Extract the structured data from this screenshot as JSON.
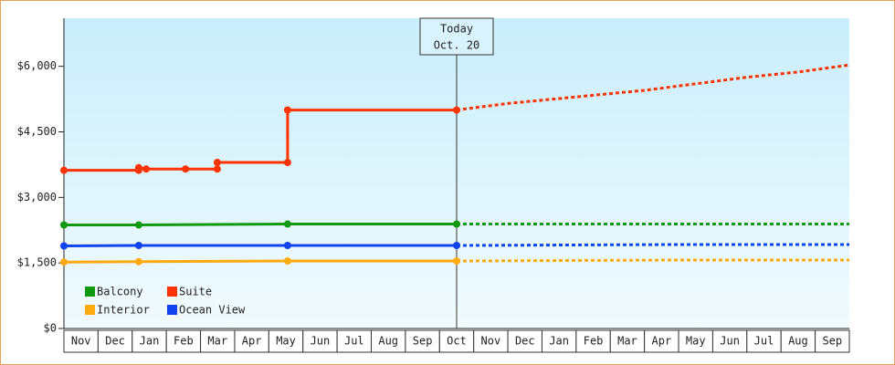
{
  "chart_data": {
    "type": "line",
    "xlim": [
      0,
      23
    ],
    "xticks": [
      {
        "value": 0.5,
        "label": "Nov"
      },
      {
        "value": 1.5,
        "label": "Dec"
      },
      {
        "value": 2.5,
        "label": "Jan"
      },
      {
        "value": 3.5,
        "label": "Feb"
      },
      {
        "value": 4.5,
        "label": "Mar"
      },
      {
        "value": 5.5,
        "label": "Apr"
      },
      {
        "value": 6.5,
        "label": "May"
      },
      {
        "value": 7.5,
        "label": "Jun"
      },
      {
        "value": 8.5,
        "label": "Jul"
      },
      {
        "value": 9.5,
        "label": "Aug"
      },
      {
        "value": 10.5,
        "label": "Sep"
      },
      {
        "value": 11.5,
        "label": "Oct"
      },
      {
        "value": 12.5,
        "label": "Nov"
      },
      {
        "value": 13.5,
        "label": "Dec"
      },
      {
        "value": 14.5,
        "label": "Jan"
      },
      {
        "value": 15.5,
        "label": "Feb"
      },
      {
        "value": 16.5,
        "label": "Mar"
      },
      {
        "value": 17.5,
        "label": "Apr"
      },
      {
        "value": 18.5,
        "label": "May"
      },
      {
        "value": 19.5,
        "label": "Jun"
      },
      {
        "value": 20.5,
        "label": "Jul"
      },
      {
        "value": 21.5,
        "label": "Aug"
      },
      {
        "value": 22.5,
        "label": "Sep"
      }
    ],
    "ylim": [
      0,
      7100
    ],
    "yticks": [
      {
        "value": 0,
        "label": "$0"
      },
      {
        "value": 1500,
        "label": "$1,500"
      },
      {
        "value": 3000,
        "label": "$3,000"
      },
      {
        "value": 4500,
        "label": "$4,500"
      },
      {
        "value": 6000,
        "label": "$6,000"
      }
    ],
    "annotation": {
      "x": 11.5,
      "lines": [
        "Today",
        "Oct. 20"
      ]
    },
    "series": [
      {
        "name": "Balcony",
        "color": "#119911",
        "x": [
          0,
          2.19,
          6.55,
          11.5
        ],
        "values": [
          2370,
          2370,
          2390,
          2390
        ],
        "forecast_x": [
          11.5,
          23
        ],
        "forecast": [
          2390,
          2390
        ]
      },
      {
        "name": "Suite",
        "color": "#ff3300",
        "x": [
          0,
          2.19,
          2.19,
          2.41,
          3.56,
          4.49,
          4.49,
          6.55,
          6.55,
          11.5
        ],
        "values": [
          3620,
          3620,
          3680,
          3650,
          3650,
          3650,
          3800,
          3800,
          5000,
          5000
        ],
        "forecast_x": [
          11.5,
          13,
          15,
          17,
          18.5,
          20,
          21.5,
          23
        ],
        "forecast": [
          5000,
          5150,
          5300,
          5450,
          5600,
          5750,
          5870,
          6030
        ]
      },
      {
        "name": "Interior",
        "color": "#ffaa11",
        "x": [
          0,
          2.19,
          6.55,
          11.5
        ],
        "values": [
          1520,
          1530,
          1545,
          1545
        ],
        "forecast_x": [
          11.5,
          17.5,
          23
        ],
        "forecast": [
          1545,
          1565,
          1565
        ]
      },
      {
        "name": "Ocean View",
        "color": "#1144ee",
        "x": [
          0,
          2.19,
          6.55,
          11.5
        ],
        "values": [
          1890,
          1900,
          1900,
          1900
        ],
        "forecast_x": [
          11.5,
          17.5,
          23
        ],
        "forecast": [
          1900,
          1920,
          1920
        ]
      }
    ]
  }
}
